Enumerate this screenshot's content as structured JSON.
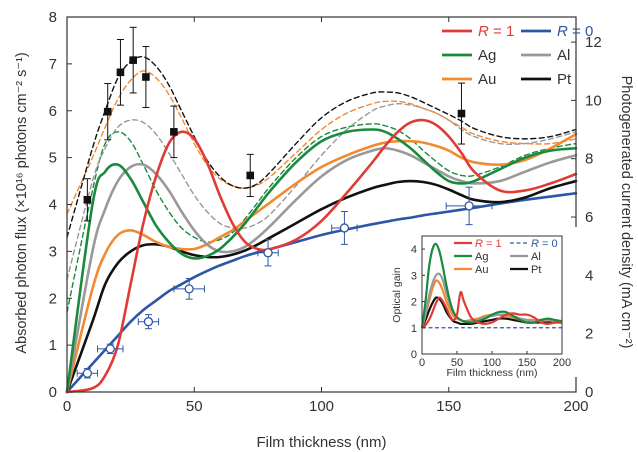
{
  "chart_data": [
    {
      "type": "line",
      "xlabel": "Film thickness (nm)",
      "ylabel": "Absorbed photon flux (×10¹⁶ photons cm⁻² s⁻¹)",
      "y2label": "Photogenerated current density (mA cm⁻²)",
      "xlim": [
        0,
        200
      ],
      "ylim": [
        0,
        8
      ],
      "y2lim": [
        0,
        12.86
      ],
      "xticks": [
        0,
        50,
        100,
        150,
        200
      ],
      "yticks": [
        0,
        1,
        2,
        3,
        4,
        5,
        6,
        7,
        8
      ],
      "y2ticks": [
        0,
        2,
        4,
        6,
        8,
        10,
        12
      ],
      "grid": false,
      "legend_position": "top-right",
      "legend": [
        {
          "label_prefix": "R",
          "label_suffix": " = 1",
          "color": "#e03c36",
          "italic": true
        },
        {
          "label_prefix": "R",
          "label_suffix": " = 0",
          "color": "#2e56a6",
          "italic": true
        },
        {
          "label": "Ag",
          "color": "#1a8a3e"
        },
        {
          "label": "Al",
          "color": "#999999"
        },
        {
          "label": "Au",
          "color": "#f28a30"
        },
        {
          "label": "Pt",
          "color": "#111111"
        }
      ],
      "x": [
        0,
        10,
        15,
        20,
        25,
        30,
        35,
        40,
        45,
        50,
        55,
        60,
        65,
        70,
        75,
        80,
        90,
        100,
        110,
        120,
        125,
        130,
        135,
        140,
        145,
        150,
        155,
        160,
        170,
        180,
        190,
        200
      ],
      "series": [
        {
          "name": "R = 1",
          "style": "solid",
          "color": "#e03c36",
          "values": [
            0,
            0.08,
            0.35,
            1.0,
            2.3,
            3.6,
            4.6,
            5.3,
            5.55,
            5.4,
            4.9,
            4.2,
            3.6,
            3.2,
            3.05,
            3.05,
            3.25,
            3.65,
            4.25,
            4.9,
            5.25,
            5.55,
            5.75,
            5.8,
            5.7,
            5.45,
            5.1,
            4.7,
            4.3,
            4.3,
            4.45,
            4.65
          ]
        },
        {
          "name": "R = 0",
          "style": "solid",
          "color": "#2e56a6",
          "values": [
            0,
            0.6,
            0.9,
            1.2,
            1.5,
            1.75,
            1.95,
            2.15,
            2.3,
            2.45,
            2.58,
            2.7,
            2.8,
            2.9,
            2.98,
            3.05,
            3.2,
            3.35,
            3.47,
            3.58,
            3.63,
            3.68,
            3.72,
            3.77,
            3.81,
            3.85,
            3.89,
            3.93,
            4.02,
            4.1,
            4.17,
            4.24
          ]
        },
        {
          "name": "Ag",
          "style": "solid",
          "color": "#1a8a3e",
          "values": [
            0,
            4.0,
            4.7,
            4.85,
            4.55,
            4.05,
            3.55,
            3.2,
            2.95,
            2.85,
            2.9,
            3.05,
            3.3,
            3.6,
            3.95,
            4.3,
            4.9,
            5.35,
            5.55,
            5.6,
            5.55,
            5.4,
            5.2,
            4.95,
            4.7,
            4.5,
            4.45,
            4.5,
            4.75,
            5.0,
            5.15,
            5.2
          ]
        },
        {
          "name": "Al",
          "style": "solid",
          "color": "#999999",
          "values": [
            0,
            3.0,
            3.9,
            4.5,
            4.8,
            4.85,
            4.65,
            4.3,
            3.85,
            3.45,
            3.15,
            3.0,
            3.0,
            3.1,
            3.3,
            3.55,
            4.1,
            4.6,
            4.95,
            5.15,
            5.2,
            5.15,
            5.05,
            4.9,
            4.75,
            4.6,
            4.5,
            4.45,
            4.5,
            4.7,
            4.9,
            5.05
          ]
        },
        {
          "name": "Au",
          "style": "solid",
          "color": "#f28a30",
          "values": [
            0,
            2.2,
            2.95,
            3.35,
            3.45,
            3.35,
            3.2,
            3.1,
            3.05,
            3.05,
            3.15,
            3.3,
            3.45,
            3.65,
            3.85,
            4.05,
            4.45,
            4.8,
            5.05,
            5.25,
            5.32,
            5.35,
            5.35,
            5.32,
            5.25,
            5.15,
            5.0,
            4.9,
            4.85,
            4.95,
            5.2,
            5.5
          ]
        },
        {
          "name": "Pt",
          "style": "solid",
          "color": "#111111",
          "values": [
            0,
            1.5,
            2.3,
            2.75,
            3.0,
            3.13,
            3.15,
            3.1,
            3.0,
            2.92,
            2.88,
            2.88,
            2.93,
            3.02,
            3.15,
            3.3,
            3.6,
            3.9,
            4.15,
            4.35,
            4.42,
            4.48,
            4.5,
            4.48,
            4.42,
            4.32,
            4.2,
            4.1,
            4.05,
            4.15,
            4.35,
            4.5
          ]
        },
        {
          "name": "Ag",
          "style": "dashed",
          "color": "#1a8a3e",
          "values": [
            1.7,
            4.3,
            5.3,
            5.55,
            5.35,
            4.85,
            4.3,
            3.85,
            3.5,
            3.3,
            3.2,
            3.25,
            3.4,
            3.7,
            4.05,
            4.4,
            5.0,
            5.45,
            5.65,
            5.72,
            5.68,
            5.58,
            5.4,
            5.15,
            4.92,
            4.72,
            4.62,
            4.62,
            4.8,
            5.05,
            5.2,
            5.3
          ]
        },
        {
          "name": "Al",
          "style": "dashed",
          "color": "#999999",
          "values": [
            2.4,
            4.5,
            5.2,
            5.65,
            5.8,
            5.75,
            5.5,
            5.1,
            4.65,
            4.2,
            3.85,
            3.6,
            3.5,
            3.5,
            3.6,
            3.8,
            4.4,
            5.05,
            5.6,
            6.0,
            6.1,
            6.15,
            6.12,
            6.05,
            5.95,
            5.8,
            5.6,
            5.45,
            5.3,
            5.3,
            5.4,
            5.55
          ]
        },
        {
          "name": "Au",
          "style": "dashed",
          "color": "#f28a30",
          "values": [
            3.8,
            5.0,
            5.65,
            6.25,
            6.65,
            6.85,
            6.7,
            6.35,
            5.85,
            5.3,
            4.85,
            4.55,
            4.4,
            4.35,
            4.42,
            4.6,
            5.1,
            5.6,
            5.95,
            6.15,
            6.2,
            6.2,
            6.15,
            6.05,
            5.95,
            5.8,
            5.65,
            5.5,
            5.35,
            5.3,
            5.3,
            5.4
          ]
        },
        {
          "name": "Pt",
          "style": "dashed",
          "color": "#111111",
          "values": [
            3.3,
            5.2,
            6.0,
            6.7,
            7.05,
            7.15,
            6.95,
            6.55,
            6.0,
            5.45,
            4.95,
            4.6,
            4.4,
            4.35,
            4.45,
            4.7,
            5.3,
            5.85,
            6.2,
            6.38,
            6.4,
            6.38,
            6.3,
            6.18,
            6.05,
            5.92,
            5.78,
            5.62,
            5.45,
            5.4,
            5.45,
            5.6
          ]
        }
      ],
      "markers": [
        {
          "name": "measured (Pt)",
          "marker": "square",
          "color": "#111111",
          "points": [
            {
              "x": 8,
              "y": 4.1,
              "yerr": 0.45
            },
            {
              "x": 16,
              "y": 5.98,
              "yerr": 0.6
            },
            {
              "x": 21,
              "y": 6.82,
              "yerr": 0.7
            },
            {
              "x": 26,
              "y": 7.08,
              "yerr": 0.7
            },
            {
              "x": 31,
              "y": 6.72,
              "yerr": 0.65
            },
            {
              "x": 42,
              "y": 5.55,
              "yerr": 0.55
            },
            {
              "x": 72,
              "y": 4.62,
              "yerr": 0.45
            },
            {
              "x": 155,
              "y": 5.94,
              "yerr": 0.65
            }
          ]
        },
        {
          "name": "measured (R = 0)",
          "marker": "open-circle",
          "color": "#2e56a6",
          "points": [
            {
              "x": 8,
              "y": 0.4,
              "xerr": 4,
              "yerr": 0.1
            },
            {
              "x": 17,
              "y": 0.92,
              "xerr": 5,
              "yerr": 0.1
            },
            {
              "x": 32,
              "y": 1.5,
              "xerr": 4,
              "yerr": 0.15
            },
            {
              "x": 48,
              "y": 2.2,
              "xerr": 6,
              "yerr": 0.22
            },
            {
              "x": 79,
              "y": 2.97,
              "xerr": 4,
              "yerr": 0.28
            },
            {
              "x": 109,
              "y": 3.5,
              "xerr": 5,
              "yerr": 0.35
            },
            {
              "x": 158,
              "y": 3.97,
              "xerr": 9,
              "yerr": 0.4
            }
          ]
        }
      ],
      "inset": {
        "type": "line",
        "xlabel": "Film thickness (nm)",
        "ylabel": "Optical gain",
        "xlim": [
          0,
          200
        ],
        "ylim": [
          0,
          4.5
        ],
        "xticks": [
          0,
          50,
          100,
          150,
          200
        ],
        "yticks": [
          0,
          1,
          2,
          3,
          4
        ],
        "legend_position": "top",
        "x": [
          0,
          5,
          10,
          15,
          20,
          25,
          30,
          35,
          40,
          45,
          50,
          55,
          60,
          70,
          80,
          90,
          100,
          110,
          120,
          130,
          140,
          150,
          160,
          170,
          180,
          190,
          200
        ],
        "series": [
          {
            "name": "R = 1",
            "style": "solid",
            "color": "#e03c36",
            "values": [
              1.0,
              1.1,
              1.3,
              1.6,
              1.95,
              2.15,
              2.0,
              1.75,
              1.45,
              1.3,
              1.5,
              2.35,
              2.0,
              1.4,
              1.2,
              1.15,
              1.2,
              1.35,
              1.5,
              1.55,
              1.5,
              1.5,
              1.4,
              1.2,
              1.15,
              1.2,
              1.2
            ]
          },
          {
            "name": "R = 0",
            "style": "dashed",
            "color": "#2e56a6",
            "values": [
              1.0,
              1.0,
              1.0,
              1.0,
              1.0,
              1.0,
              1.0,
              1.0,
              1.0,
              1.0,
              1.0,
              1.0,
              1.0,
              1.0,
              1.0,
              1.0,
              1.0,
              1.0,
              1.0,
              1.0,
              1.0,
              1.0,
              1.0,
              1.0,
              1.0,
              1.0,
              1.0
            ]
          },
          {
            "name": "Ag",
            "style": "solid",
            "color": "#1a8a3e",
            "values": [
              1.0,
              2.0,
              3.3,
              4.0,
              4.2,
              3.9,
              3.3,
              2.6,
              2.0,
              1.6,
              1.4,
              1.3,
              1.25,
              1.2,
              1.25,
              1.35,
              1.5,
              1.6,
              1.6,
              1.45,
              1.3,
              1.2,
              1.2,
              1.3,
              1.35,
              1.3,
              1.25
            ]
          },
          {
            "name": "Al",
            "style": "solid",
            "color": "#999999",
            "values": [
              1.0,
              1.5,
              2.2,
              2.7,
              3.0,
              3.05,
              2.8,
              2.3,
              1.9,
              1.6,
              1.4,
              1.3,
              1.25,
              1.25,
              1.3,
              1.4,
              1.45,
              1.5,
              1.5,
              1.45,
              1.35,
              1.3,
              1.25,
              1.3,
              1.3,
              1.25,
              1.25
            ]
          },
          {
            "name": "Au",
            "style": "solid",
            "color": "#f28a30",
            "values": [
              1.0,
              1.5,
              2.0,
              2.5,
              2.8,
              2.7,
              2.4,
              2.0,
              1.7,
              1.45,
              1.35,
              1.3,
              1.25,
              1.3,
              1.35,
              1.45,
              1.5,
              1.5,
              1.45,
              1.4,
              1.3,
              1.3,
              1.3,
              1.3,
              1.3,
              1.25,
              1.25
            ]
          },
          {
            "name": "Pt",
            "style": "solid",
            "color": "#111111",
            "values": [
              1.0,
              1.3,
              1.65,
              1.95,
              2.15,
              2.1,
              1.9,
              1.6,
              1.4,
              1.25,
              1.2,
              1.15,
              1.15,
              1.15,
              1.2,
              1.25,
              1.3,
              1.35,
              1.35,
              1.3,
              1.25,
              1.2,
              1.2,
              1.2,
              1.2,
              1.2,
              1.2
            ]
          }
        ]
      }
    }
  ]
}
